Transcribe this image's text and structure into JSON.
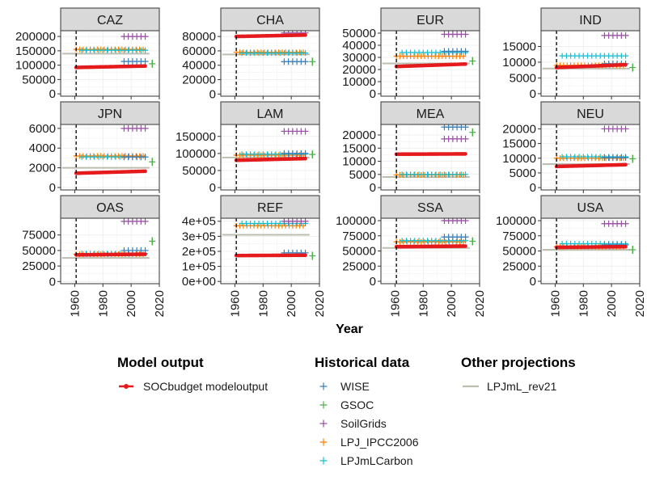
{
  "chart_data": {
    "type": "scatter",
    "xlabel": "Year",
    "x_ticks": [
      1960,
      1980,
      2000,
      2020
    ],
    "xlim": [
      1950,
      2020
    ],
    "reference_year": 1961,
    "legend": {
      "placement": "bottom",
      "groups": [
        {
          "title": "Model output",
          "entries": [
            {
              "label": "SOCbudget modeloutput",
              "color": "#e41a1c",
              "shape": "line-point"
            }
          ]
        },
        {
          "title": "Historical data",
          "entries": [
            {
              "label": "WISE",
              "color": "#377eb8",
              "shape": "plus"
            },
            {
              "label": "GSOC",
              "color": "#4daf4a",
              "shape": "plus"
            },
            {
              "label": "SoilGrids",
              "color": "#984ea3",
              "shape": "plus"
            },
            {
              "label": "LPJ_IPCC2006",
              "color": "#ff7f00",
              "shape": "plus"
            },
            {
              "label": "LPJmLCarbon",
              "color": "#17becf",
              "shape": "plus"
            }
          ]
        },
        {
          "title": "Other projections",
          "entries": [
            {
              "label": "LPJmL_rev21",
              "color": "#bdbdb0",
              "shape": "line"
            }
          ]
        }
      ]
    },
    "panels": [
      {
        "name": "CAZ",
        "ylim": [
          -8000,
          220000
        ],
        "yticks": [
          0,
          50000,
          100000,
          150000,
          200000
        ],
        "ytick_labels": [
          "0",
          "50000",
          "100000",
          "150000",
          "200000"
        ],
        "model": [
          92000,
          97000
        ],
        "lpjml": 140000,
        "wise": 113000,
        "gsoc": 105000,
        "soilgrids": 200000,
        "ipcc": 155000,
        "lpjmlcarbon": 152000
      },
      {
        "name": "CHA",
        "ylim": [
          -3000,
          88000
        ],
        "yticks": [
          0,
          20000,
          40000,
          60000,
          80000
        ],
        "ytick_labels": [
          "0",
          "20000",
          "40000",
          "60000",
          "80000"
        ],
        "model": [
          80000,
          82000
        ],
        "lpjml": 55000,
        "wise": 45000,
        "gsoc": 45000,
        "soilgrids": 85000,
        "ipcc": 58000,
        "lpjmlcarbon": 57000
      },
      {
        "name": "EUR",
        "ylim": [
          -2000,
          52000
        ],
        "yticks": [
          0,
          10000,
          20000,
          30000,
          40000,
          50000
        ],
        "ytick_labels": [
          "0",
          "10000",
          "20000",
          "30000",
          "40000",
          "50000"
        ],
        "model": [
          22500,
          24500
        ],
        "lpjml": 25000,
        "wise": 35000,
        "gsoc": 27000,
        "soilgrids": 49000,
        "ipcc": 31000,
        "lpjmlcarbon": 34000
      },
      {
        "name": "IND",
        "ylim": [
          -800,
          20000
        ],
        "yticks": [
          0,
          5000,
          10000,
          15000
        ],
        "ytick_labels": [
          "0",
          "5000",
          "10000",
          "15000"
        ],
        "model": [
          8300,
          9200
        ],
        "lpjml": 8000,
        "wise": 9500,
        "gsoc": 8300,
        "soilgrids": 18500,
        "ipcc": 9000,
        "lpjmlcarbon": 12000
      },
      {
        "name": "JPN",
        "ylim": [
          -250,
          6400
        ],
        "yticks": [
          0,
          2000,
          4000,
          6000
        ],
        "ytick_labels": [
          "0",
          "2000",
          "4000",
          "6000"
        ],
        "model": [
          1450,
          1650
        ],
        "lpjml": 2000,
        "wise": 3100,
        "gsoc": 2600,
        "soilgrids": 6000,
        "ipcc": 3200,
        "lpjmlcarbon": 3100
      },
      {
        "name": "LAM",
        "ylim": [
          -7000,
          185000
        ],
        "yticks": [
          0,
          50000,
          100000,
          150000
        ],
        "ytick_labels": [
          "0",
          "50000",
          "100000",
          "150000"
        ],
        "model": [
          80000,
          85000
        ],
        "lpjml": 88000,
        "wise": 100000,
        "gsoc": 97000,
        "soilgrids": 165000,
        "ipcc": 95000,
        "lpjmlcarbon": 98000
      },
      {
        "name": "MEA",
        "ylim": [
          -900,
          24000
        ],
        "yticks": [
          0,
          5000,
          10000,
          15000,
          20000
        ],
        "ytick_labels": [
          "0",
          "5000",
          "10000",
          "15000",
          "20000"
        ],
        "model": [
          12700,
          12800
        ],
        "lpjml": 4000,
        "wise": 23000,
        "gsoc": 21000,
        "soilgrids": 18500,
        "ipcc": 4800,
        "lpjmlcarbon": 5000
      },
      {
        "name": "NEU",
        "ylim": [
          -800,
          21500
        ],
        "yticks": [
          0,
          5000,
          10000,
          15000,
          20000
        ],
        "ytick_labels": [
          "0",
          "5000",
          "10000",
          "15000",
          "20000"
        ],
        "model": [
          7200,
          7800
        ],
        "lpjml": 8000,
        "wise": 10200,
        "gsoc": 9800,
        "soilgrids": 20000,
        "ipcc": 10000,
        "lpjmlcarbon": 10500
      },
      {
        "name": "OAS",
        "ylim": [
          -3500,
          102000
        ],
        "yticks": [
          0,
          25000,
          50000,
          75000
        ],
        "ytick_labels": [
          "0",
          "25000",
          "50000",
          "75000"
        ],
        "model": [
          43000,
          44000
        ],
        "lpjml": 38000,
        "wise": 50000,
        "gsoc": 65000,
        "soilgrids": 97000,
        "ipcc": 44000,
        "lpjmlcarbon": 45000
      },
      {
        "name": "REF",
        "ylim": [
          -15000,
          420000
        ],
        "yticks": [
          0,
          100000,
          200000,
          300000,
          400000
        ],
        "ytick_labels": [
          "0e+00",
          "1e+05",
          "2e+05",
          "3e+05",
          "4e+05"
        ],
        "model": [
          172000,
          174000
        ],
        "lpjml": 310000,
        "wise": 190000,
        "gsoc": 170000,
        "soilgrids": 400000,
        "ipcc": 370000,
        "lpjmlcarbon": 385000
      },
      {
        "name": "SSA",
        "ylim": [
          -4000,
          104000
        ],
        "yticks": [
          0,
          25000,
          50000,
          75000,
          100000
        ],
        "ytick_labels": [
          "0",
          "25000",
          "50000",
          "75000",
          "100000"
        ],
        "model": [
          57000,
          58000
        ],
        "lpjml": 55000,
        "wise": 73000,
        "gsoc": 66000,
        "soilgrids": 100000,
        "ipcc": 65000,
        "lpjmlcarbon": 67000
      },
      {
        "name": "USA",
        "ylim": [
          -4000,
          104000
        ],
        "yticks": [
          0,
          25000,
          50000,
          75000,
          100000
        ],
        "ytick_labels": [
          "0",
          "25000",
          "50000",
          "75000",
          "100000"
        ],
        "model": [
          56000,
          57000
        ],
        "lpjml": 52000,
        "wise": 60000,
        "gsoc": 52000,
        "soilgrids": 95000,
        "ipcc": 57000,
        "lpjmlcarbon": 62000
      }
    ]
  }
}
